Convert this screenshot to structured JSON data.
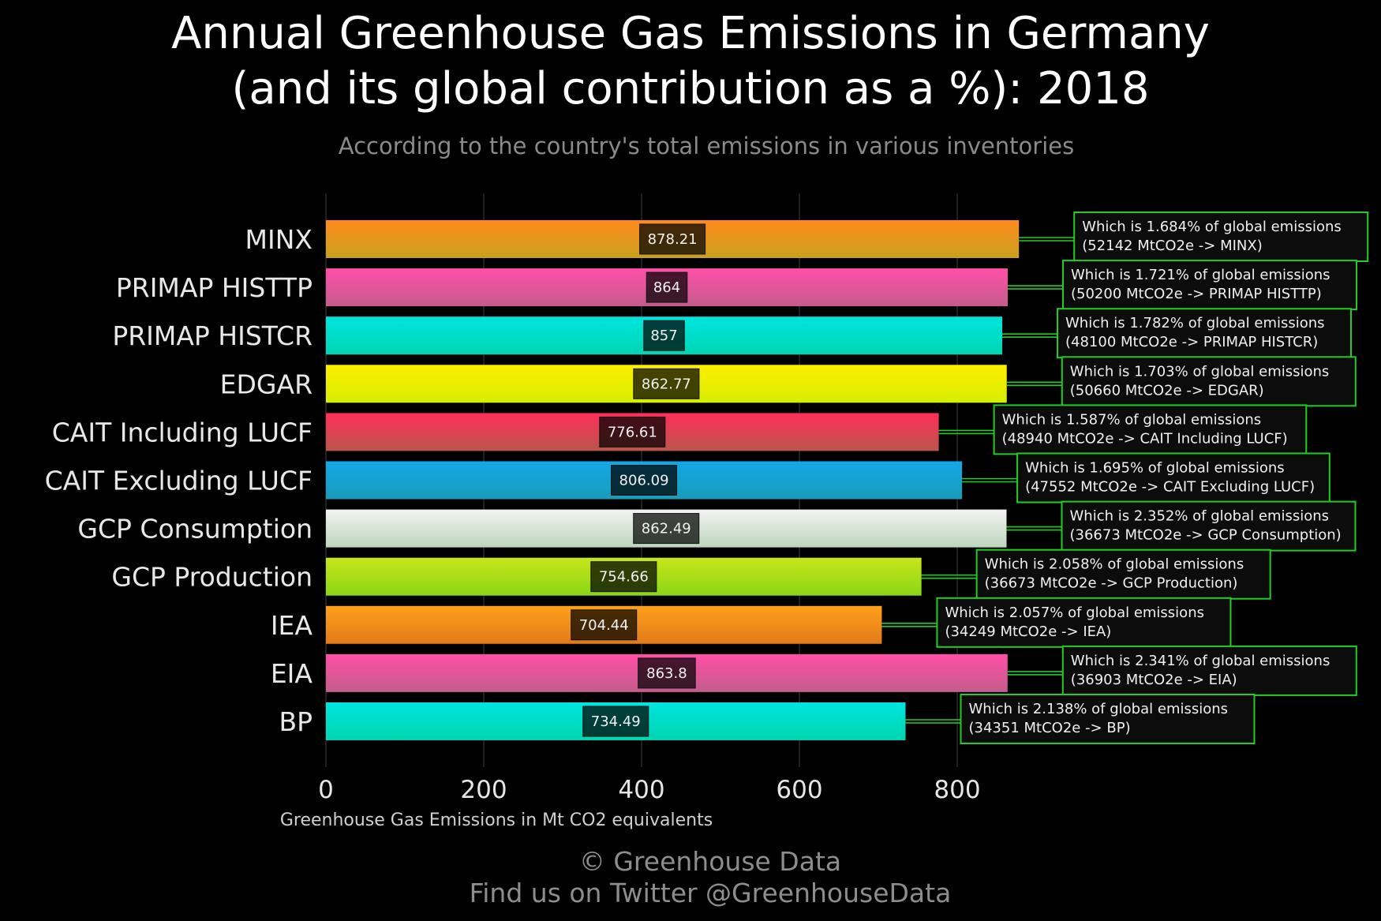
{
  "chart_data": {
    "type": "bar",
    "orientation": "horizontal",
    "title": "Annual Greenhouse Gas Emissions in Germany\n(and its global contribution as a %): 2018",
    "subtitle": "According to the country's total emissions in various inventories",
    "xlabel": "Greenhouse Gas Emissions in Mt CO2 equivalents",
    "xlim": [
      0,
      1000
    ],
    "xticks": [
      0,
      200,
      400,
      600,
      800
    ],
    "grid": true,
    "categories": [
      "MINX",
      "PRIMAP HISTTP",
      "PRIMAP HISTCR",
      "EDGAR",
      "CAIT Including LUCF",
      "CAIT Excluding LUCF",
      "GCP Consumption",
      "GCP Production",
      "IEA",
      "EIA",
      "BP"
    ],
    "values": [
      878.21,
      864,
      857,
      862.77,
      776.61,
      806.09,
      862.49,
      754.66,
      704.44,
      863.8,
      734.49
    ],
    "value_labels": [
      "878.21",
      "864",
      "857",
      "862.77",
      "776.61",
      "806.09",
      "862.49",
      "754.66",
      "704.44",
      "863.8",
      "734.49"
    ],
    "annotations": [
      {
        "line1": "Which is 1.684% of global emissions",
        "line2": "(52142 MtCO2e -> MINX)"
      },
      {
        "line1": "Which is 1.721% of global emissions",
        "line2": "(50200 MtCO2e -> PRIMAP HISTTP)"
      },
      {
        "line1": "Which is 1.782% of global emissions",
        "line2": "(48100 MtCO2e -> PRIMAP HISTCR)"
      },
      {
        "line1": "Which is 1.703% of global emissions",
        "line2": "(50660 MtCO2e -> EDGAR)"
      },
      {
        "line1": "Which is 1.587% of global emissions",
        "line2": "(48940 MtCO2e -> CAIT Including LUCF)"
      },
      {
        "line1": "Which is 1.695% of global emissions",
        "line2": "(47552 MtCO2e -> CAIT Excluding LUCF)"
      },
      {
        "line1": "Which is 2.352% of global emissions",
        "line2": "(36673 MtCO2e -> GCP Consumption)"
      },
      {
        "line1": "Which is 2.058% of global emissions",
        "line2": "(36673 MtCO2e -> GCP Production)"
      },
      {
        "line1": "Which is 2.057% of global emissions",
        "line2": "(34249 MtCO2e -> IEA)"
      },
      {
        "line1": "Which is 2.341% of global emissions",
        "line2": "(36903 MtCO2e -> EIA)"
      },
      {
        "line1": "Which is 2.138% of global emissions",
        "line2": "(34351 MtCO2e -> BP)"
      }
    ],
    "bar_colors": [
      [
        "#ff8a1c",
        "#c9a11f"
      ],
      [
        "#ff4fa8",
        "#c45c8c"
      ],
      [
        "#00e5e0",
        "#00d6b0"
      ],
      [
        "#ffee00",
        "#d6ee00"
      ],
      [
        "#ff2e5a",
        "#b9554a"
      ],
      [
        "#12a8e8",
        "#1a9cb8"
      ],
      [
        "#f2f2f2",
        "#bdd6bd"
      ],
      [
        "#c8e61a",
        "#8ad615"
      ],
      [
        "#ffa01a",
        "#e07a1a"
      ],
      [
        "#ff4fa8",
        "#c45c8c"
      ],
      [
        "#00e5e0",
        "#00d6b0"
      ]
    ],
    "annotation_border_color": "#22cc22"
  },
  "footer": {
    "line1": "© Greenhouse Data",
    "line2": "Find us on Twitter @GreenhouseData"
  }
}
